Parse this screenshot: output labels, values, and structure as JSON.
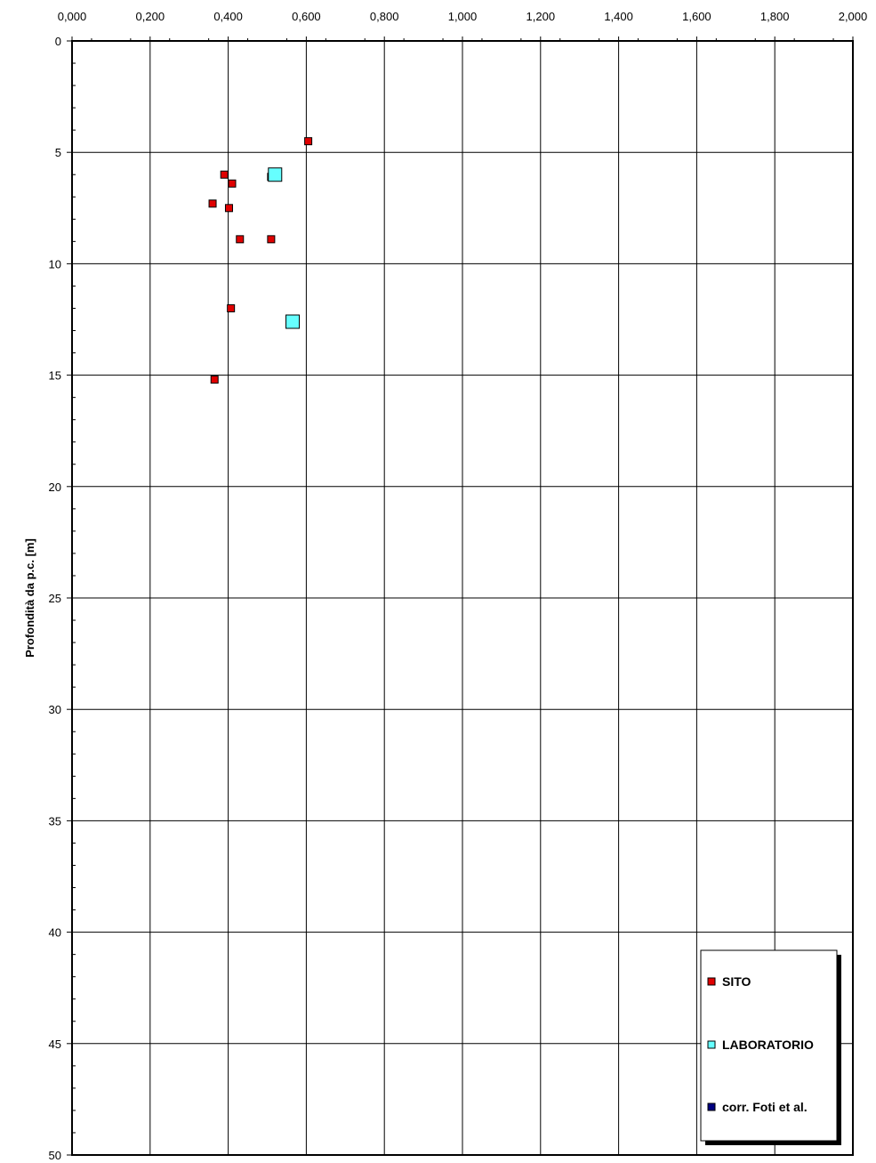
{
  "chart_data": {
    "type": "scatter",
    "title": "",
    "xlabel": "",
    "ylabel": "Profondità da p.c. [m]",
    "xlim": [
      0,
      2
    ],
    "ylim": [
      0,
      50
    ],
    "y_inverted": true,
    "x_axis_position": "top",
    "grid": true,
    "x_ticks": [
      "0,000",
      "0,200",
      "0,400",
      "0,600",
      "0,800",
      "1,000",
      "1,200",
      "1,400",
      "1,600",
      "1,800",
      "2,000"
    ],
    "y_ticks": [
      "0",
      "5",
      "10",
      "15",
      "20",
      "25",
      "30",
      "35",
      "40",
      "45",
      "50"
    ],
    "legend_position": "bottom-right",
    "series": [
      {
        "name": "SITO",
        "color": "#e00000",
        "marker": "square-small",
        "points": [
          {
            "x": 0.605,
            "y": 4.5
          },
          {
            "x": 0.39,
            "y": 6.0
          },
          {
            "x": 0.41,
            "y": 6.4
          },
          {
            "x": 0.36,
            "y": 7.3
          },
          {
            "x": 0.402,
            "y": 7.5
          },
          {
            "x": 0.43,
            "y": 8.9
          },
          {
            "x": 0.51,
            "y": 8.9
          },
          {
            "x": 0.407,
            "y": 12.0
          },
          {
            "x": 0.365,
            "y": 15.2
          },
          {
            "x": 0.51,
            "y": 6.1
          }
        ]
      },
      {
        "name": "LABORATORIO",
        "color": "#66ffff",
        "marker": "square-large",
        "points": [
          {
            "x": 0.52,
            "y": 6.0
          },
          {
            "x": 0.565,
            "y": 12.6
          }
        ]
      },
      {
        "name": "corr. Foti et al.",
        "color": "#000080",
        "marker": "square-small",
        "points": []
      }
    ]
  }
}
